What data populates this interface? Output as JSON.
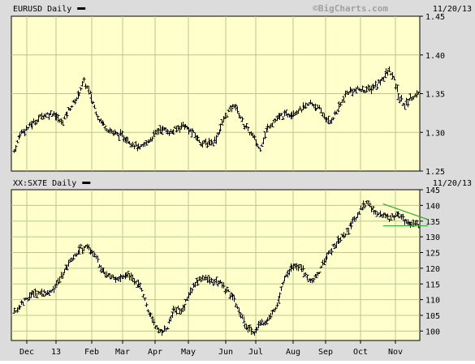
{
  "colors": {
    "panel_bg": "#ffffcc",
    "frame_bg": "#dcdcdc",
    "grid": "#b8c98a",
    "bars": "#000000",
    "trend": "#33aa33",
    "watermark": "#a0a0a0"
  },
  "watermark": "©BigCharts.com",
  "chart_data": [
    {
      "type": "ohlc",
      "title": "EURUSD Daily",
      "date": "11/20/13",
      "y_ticks": [
        1.45,
        1.4,
        1.35,
        1.3,
        1.25
      ],
      "y_tick_labels": [
        "1.45",
        "1.40",
        "1.35",
        "1.30",
        "1.25"
      ],
      "ylim": [
        1.25,
        1.45
      ],
      "x_months": [
        "Dec",
        "13",
        "Feb",
        "Mar",
        "Apr",
        "May",
        "Jun",
        "Jul",
        "Aug",
        "Sep",
        "Oct",
        "Nov"
      ],
      "grid": true,
      "series": [
        {
          "anchors": [
            [
              0,
              1.276
            ],
            [
              6,
              1.3
            ],
            [
              14,
              1.308
            ],
            [
              25,
              1.322
            ],
            [
              35,
              1.325
            ],
            [
              42,
              1.312
            ],
            [
              50,
              1.332
            ],
            [
              56,
              1.345
            ],
            [
              62,
              1.366
            ],
            [
              68,
              1.348
            ],
            [
              75,
              1.318
            ],
            [
              85,
              1.302
            ],
            [
              100,
              1.292
            ],
            [
              112,
              1.278
            ],
            [
              120,
              1.29
            ],
            [
              130,
              1.305
            ],
            [
              140,
              1.3
            ],
            [
              150,
              1.31
            ],
            [
              158,
              1.3
            ],
            [
              168,
              1.285
            ],
            [
              178,
              1.288
            ],
            [
              188,
              1.322
            ],
            [
              196,
              1.336
            ],
            [
              204,
              1.31
            ],
            [
              212,
              1.295
            ],
            [
              218,
              1.278
            ],
            [
              226,
              1.308
            ],
            [
              236,
              1.32
            ],
            [
              246,
              1.325
            ],
            [
              256,
              1.33
            ],
            [
              264,
              1.338
            ],
            [
              272,
              1.328
            ],
            [
              280,
              1.312
            ],
            [
              288,
              1.33
            ],
            [
              296,
              1.352
            ],
            [
              305,
              1.355
            ],
            [
              315,
              1.355
            ],
            [
              323,
              1.362
            ],
            [
              330,
              1.375
            ],
            [
              334,
              1.38
            ],
            [
              338,
              1.365
            ],
            [
              342,
              1.345
            ],
            [
              347,
              1.335
            ],
            [
              352,
              1.345
            ],
            [
              357,
              1.348
            ]
          ]
        }
      ]
    },
    {
      "type": "ohlc",
      "title": "XX:SX7E Daily",
      "date": "11/20/13",
      "y_ticks": [
        145,
        140,
        135,
        130,
        125,
        120,
        115,
        110,
        105,
        100
      ],
      "y_tick_labels": [
        "145",
        "140",
        "135",
        "130",
        "125",
        "120",
        "115",
        "110",
        "105",
        "100"
      ],
      "ylim": [
        97,
        145
      ],
      "x_months": [
        "Dec",
        "13",
        "Feb",
        "Mar",
        "Apr",
        "May",
        "Jun",
        "Jul",
        "Aug",
        "Sep",
        "Oct",
        "Nov"
      ],
      "grid": true,
      "series": [
        {
          "anchors": [
            [
              0,
              106
            ],
            [
              8,
              109
            ],
            [
              16,
              112
            ],
            [
              25,
              112
            ],
            [
              35,
              113
            ],
            [
              45,
              119
            ],
            [
              52,
              123
            ],
            [
              58,
              126
            ],
            [
              64,
              127
            ],
            [
              70,
              125
            ],
            [
              76,
              121
            ],
            [
              82,
              118
            ],
            [
              92,
              116
            ],
            [
              102,
              118
            ],
            [
              112,
              114
            ],
            [
              120,
              106
            ],
            [
              128,
              100
            ],
            [
              136,
              101
            ],
            [
              142,
              107
            ],
            [
              150,
              107
            ],
            [
              160,
              115
            ],
            [
              168,
              117
            ],
            [
              176,
              116
            ],
            [
              184,
              115
            ],
            [
              194,
              111
            ],
            [
              200,
              106
            ],
            [
              206,
              102
            ],
            [
              212,
              99
            ],
            [
              218,
              102
            ],
            [
              226,
              104
            ],
            [
              234,
              108
            ],
            [
              240,
              116
            ],
            [
              246,
              120
            ],
            [
              254,
              121
            ],
            [
              262,
              116
            ],
            [
              270,
              118
            ],
            [
              278,
              124
            ],
            [
              286,
              128
            ],
            [
              294,
              131
            ],
            [
              302,
              135
            ],
            [
              308,
              139
            ],
            [
              314,
              141
            ],
            [
              320,
              138
            ],
            [
              326,
              137
            ],
            [
              334,
              136
            ],
            [
              340,
              137
            ],
            [
              348,
              135
            ],
            [
              356,
              134
            ]
          ]
        }
      ],
      "annotations": {
        "triangle": {
          "upper": [
            [
              328,
              140.5
            ],
            [
              358,
              136.0
            ]
          ],
          "lower": [
            [
              328,
              133.5
            ],
            [
              358,
              133.5
            ]
          ]
        }
      }
    }
  ]
}
